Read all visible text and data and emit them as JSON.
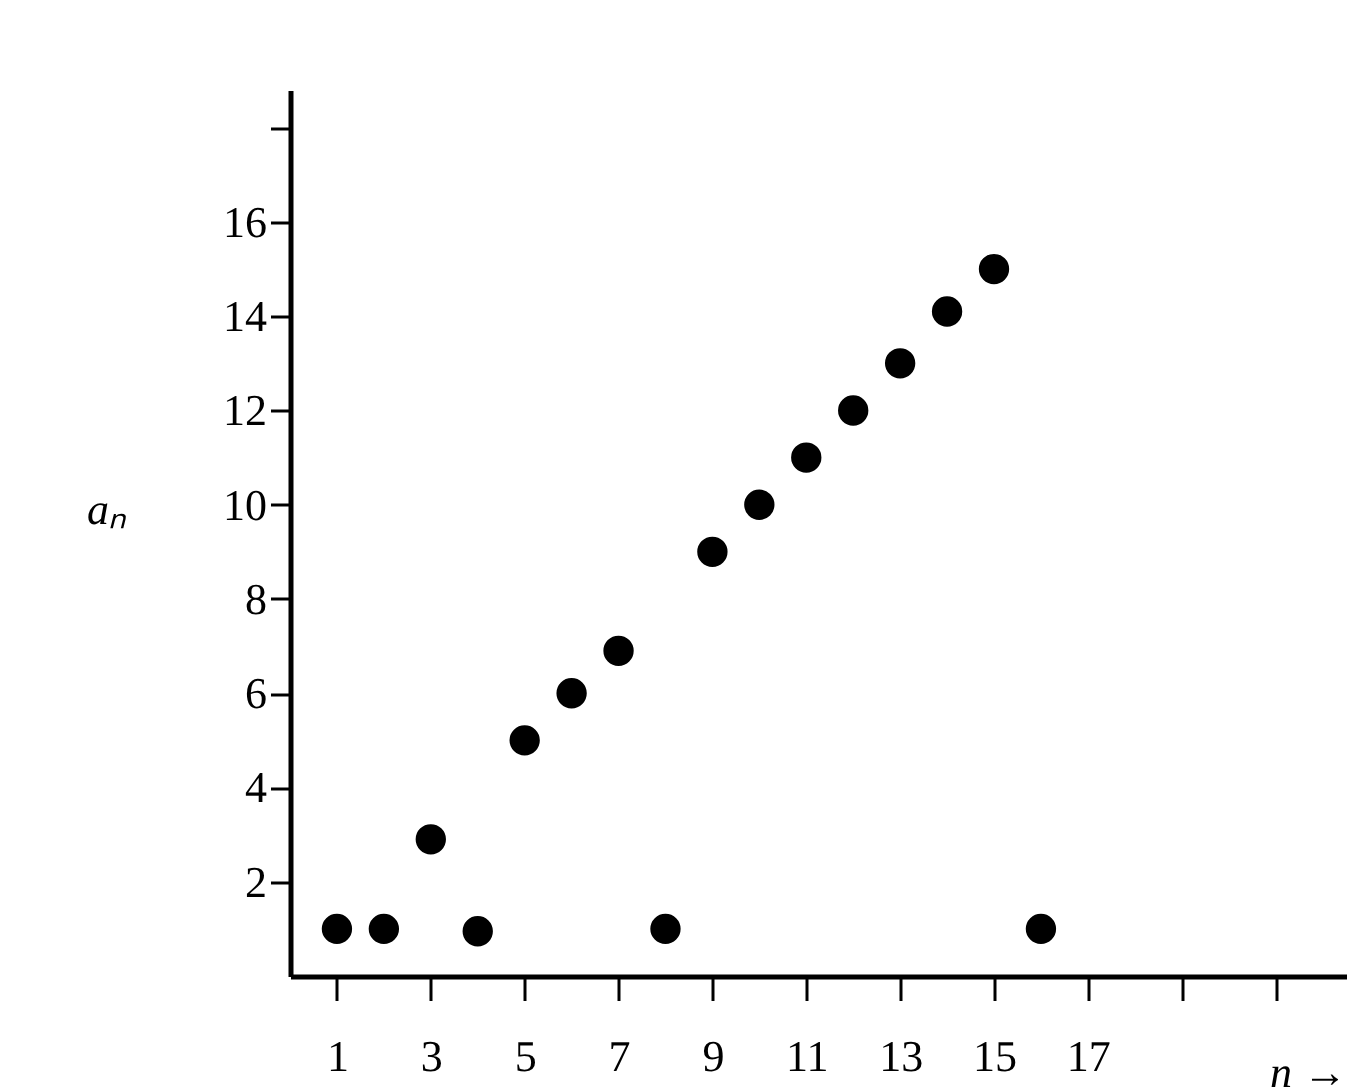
{
  "chart_data": {
    "type": "scatter",
    "xlabel": "n →",
    "ylabel": "aₙ",
    "x": [
      1,
      2,
      3,
      4,
      5,
      6,
      7,
      8,
      9,
      10,
      11,
      12,
      13,
      14,
      15,
      16
    ],
    "series": [
      {
        "color": "#000000",
        "values": [
          1,
          1,
          2.9,
          0.95,
          5,
          6,
          6.9,
          1,
          9,
          10,
          11,
          12,
          13,
          14.1,
          15,
          1
        ]
      }
    ],
    "xlim": [
      0,
      22.5
    ],
    "ylim": [
      0,
      18.8
    ],
    "xticks": [
      1,
      3,
      5,
      7,
      9,
      11,
      13,
      15,
      17,
      {
        "value": 19,
        "label": null
      },
      {
        "value": 21,
        "label": null
      }
    ],
    "yticks": [
      2,
      4,
      6,
      8,
      10,
      12,
      14,
      16,
      {
        "value": 18,
        "label": null
      }
    ],
    "marker": "circle",
    "grid": false,
    "legend": false
  }
}
